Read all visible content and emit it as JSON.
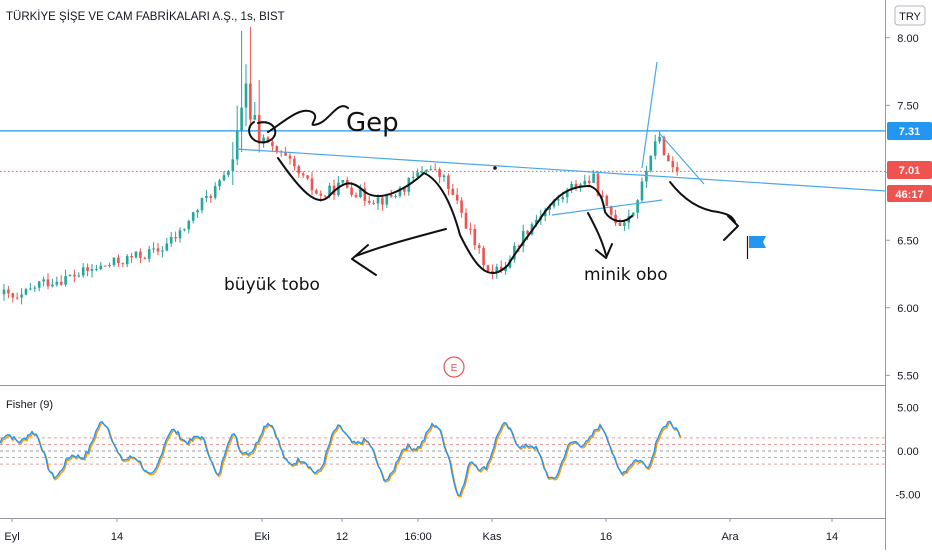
{
  "header": {
    "symbol_title": "TÜRKİYE ŞİŞE VE CAM FABRİKALARI A.Ş., 1s, BIST",
    "currency": "TRY"
  },
  "indicator": {
    "label": "Fisher (9)"
  },
  "event_marker": {
    "label": "E"
  },
  "annotations": {
    "gap": "Gep",
    "big_cup": "büyük tobo",
    "small_cup": "minik obo"
  },
  "colors": {
    "up": "#26a69a",
    "down": "#ef5350",
    "hline": "#2196f3",
    "trend": "#4aa8e8",
    "fisher": "#2196f3",
    "trigger": "#ff9800",
    "ink": "#111111",
    "flag": "#2196f3"
  },
  "badges": [
    {
      "text": "7.31",
      "kind": "hline"
    },
    {
      "text": "7.01",
      "kind": "price"
    },
    {
      "text": "46:17",
      "kind": "countdown"
    }
  ],
  "chart_data": [
    {
      "type": "candlestick",
      "title": "TÜRKİYE ŞİŞE VE CAM FABRİKALARI A.Ş., 1s, BIST",
      "y_ticks": [
        "8.00",
        "7.50",
        "7.00",
        "6.50",
        "6.00",
        "5.50"
      ],
      "ylim": [
        5.45,
        8.25
      ],
      "x_ticks": [
        "Eyl",
        "14",
        "Eki",
        "12",
        "16:00",
        "Kas",
        "16",
        "Ara",
        "14"
      ],
      "last_price": 7.01,
      "horizontal_line": 7.31,
      "grid": false,
      "path": [
        [
          0,
          6.1
        ],
        [
          3,
          6.05
        ],
        [
          8,
          6.18
        ],
        [
          14,
          6.22
        ],
        [
          22,
          6.3
        ],
        [
          30,
          6.38
        ],
        [
          35,
          6.42
        ],
        [
          40,
          6.55
        ],
        [
          45,
          6.78
        ],
        [
          50,
          6.95
        ],
        [
          53,
          7.2
        ],
        [
          55,
          7.55
        ],
        [
          57,
          7.4
        ],
        [
          60,
          7.2
        ],
        [
          64,
          7.1
        ],
        [
          68,
          6.95
        ],
        [
          72,
          6.82
        ],
        [
          77,
          6.92
        ],
        [
          82,
          6.82
        ],
        [
          87,
          6.8
        ],
        [
          92,
          6.92
        ],
        [
          96,
          7.05
        ],
        [
          100,
          6.95
        ],
        [
          104,
          6.7
        ],
        [
          108,
          6.4
        ],
        [
          111,
          6.25
        ],
        [
          114,
          6.32
        ],
        [
          118,
          6.55
        ],
        [
          122,
          6.7
        ],
        [
          126,
          6.8
        ],
        [
          130,
          6.92
        ],
        [
          134,
          6.95
        ],
        [
          137,
          6.72
        ],
        [
          140,
          6.63
        ],
        [
          143,
          6.72
        ],
        [
          145,
          6.9
        ],
        [
          147,
          7.15
        ],
        [
          149,
          7.25
        ],
        [
          151,
          7.08
        ],
        [
          153,
          7.01
        ]
      ]
    },
    {
      "type": "line",
      "title": "Fisher (9)",
      "y_ticks": [
        "5.00",
        "0.00",
        "-5.00"
      ],
      "ylim": [
        -7.0,
        7.0
      ],
      "level_lines": [
        1.5,
        0.75,
        0.0,
        -0.75,
        -1.5
      ]
    }
  ]
}
